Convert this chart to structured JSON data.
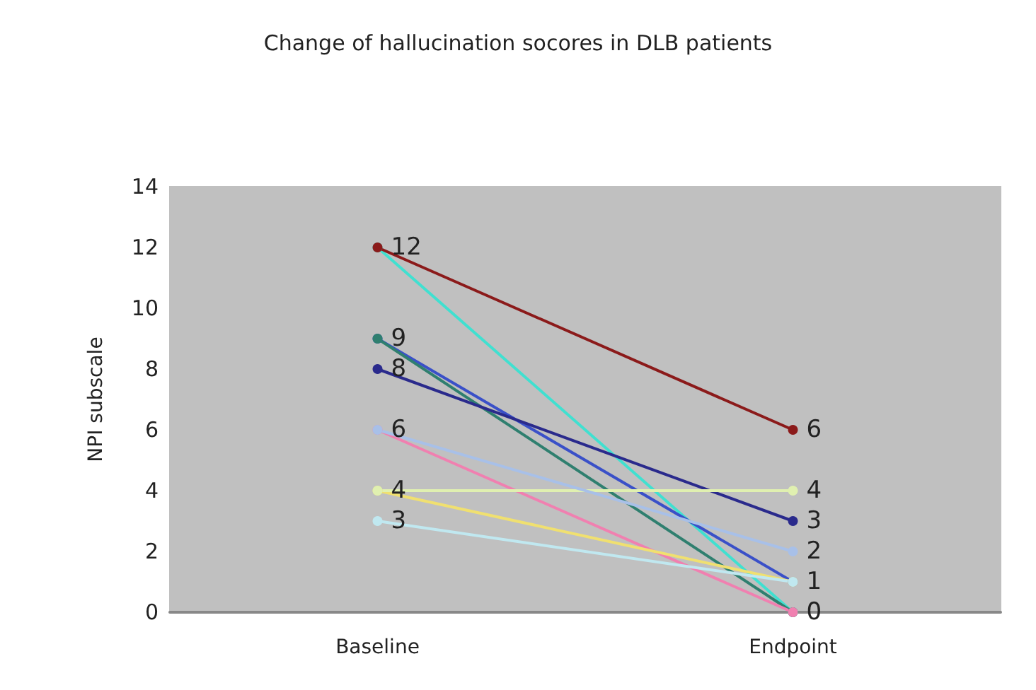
{
  "chart_data": {
    "type": "line",
    "title": "Change of hallucination socores in DLB patients",
    "ylabel": "NPI subscale",
    "categories": [
      "Baseline",
      "Endpoint"
    ],
    "ylim": [
      0,
      14
    ],
    "yticks": [
      0,
      2,
      4,
      6,
      8,
      10,
      12,
      14
    ],
    "grid": false,
    "marker": "circle",
    "series": [
      {
        "color": "#40e0d0",
        "values": [
          12,
          0
        ],
        "value_labels": [
          null,
          null
        ]
      },
      {
        "color": "#8b1a1a",
        "values": [
          12,
          6
        ],
        "value_labels": [
          "12",
          "6"
        ]
      },
      {
        "color": "#3a50c8",
        "values": [
          9,
          1
        ],
        "value_labels": [
          "9",
          "1"
        ]
      },
      {
        "color": "#2f7f6f",
        "values": [
          9,
          0
        ],
        "value_labels": [
          null,
          "0"
        ]
      },
      {
        "color": "#2a2a8c",
        "values": [
          8,
          3
        ],
        "value_labels": [
          "8",
          "3"
        ]
      },
      {
        "color": "#f080b0",
        "values": [
          6,
          0
        ],
        "value_labels": [
          "6",
          null
        ]
      },
      {
        "color": "#f0e070",
        "values": [
          4,
          1
        ],
        "value_labels": [
          "4",
          null
        ]
      },
      {
        "color": "#e0f0b0",
        "values": [
          4,
          4
        ],
        "value_labels": [
          null,
          "4"
        ]
      },
      {
        "color": "#c0e8f0",
        "values": [
          3,
          1
        ],
        "value_labels": [
          "3",
          null
        ]
      },
      {
        "color": "#a8c0e8",
        "values": [
          6,
          2
        ],
        "value_labels": [
          null,
          "2"
        ]
      }
    ]
  }
}
